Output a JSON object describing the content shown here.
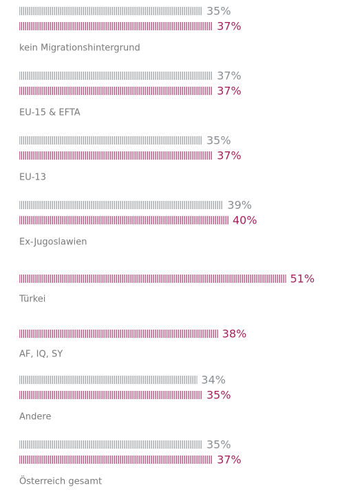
{
  "chart_data": {
    "type": "tally-bar",
    "categories": [
      "kein Migrationshintergrund",
      "EU-15 & EFTA",
      "EU-13",
      "Ex-Jugoslawien",
      "Türkei",
      "AF, IQ, SY",
      "Andere",
      "Österreich gesamt"
    ],
    "series": [
      {
        "color": "#8a8d92",
        "values": [
          35,
          37,
          35,
          39,
          null,
          null,
          34,
          35
        ],
        "value_labels": [
          "35%",
          "37%",
          "35%",
          "39%",
          null,
          null,
          "34%",
          "35%"
        ]
      },
      {
        "color": "#a3235e",
        "values": [
          37,
          37,
          37,
          40,
          51,
          38,
          35,
          37
        ],
        "value_labels": [
          "37%",
          "37%",
          "37%",
          "40%",
          "51%",
          "38%",
          "35%",
          "37%"
        ]
      }
    ]
  }
}
